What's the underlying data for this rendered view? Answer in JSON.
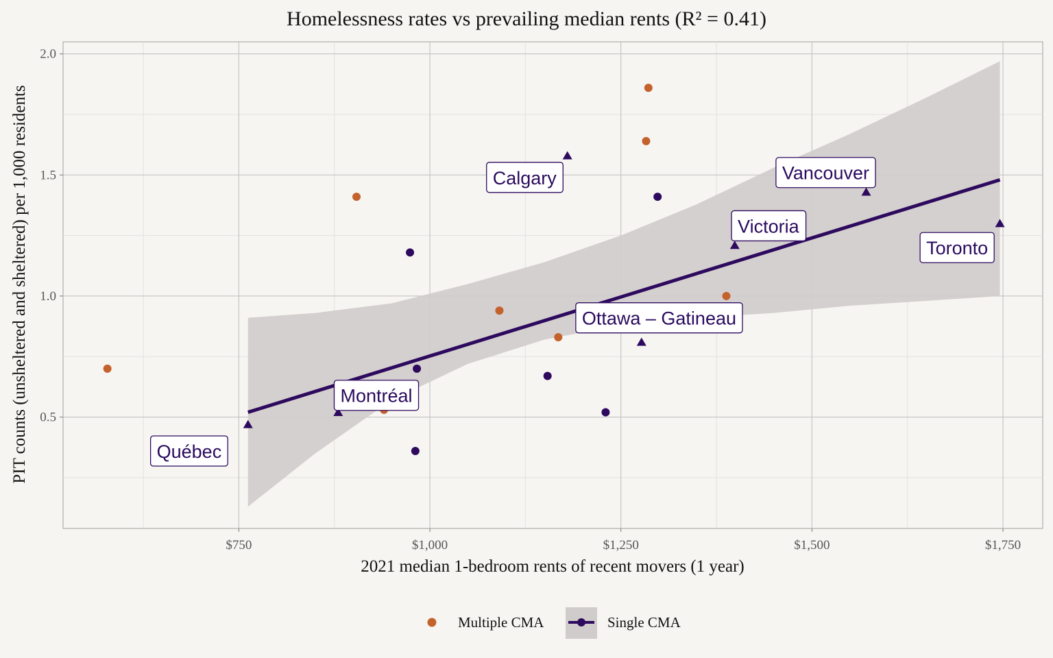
{
  "chart_data": {
    "type": "scatter",
    "title": "Homelessness rates vs prevailing median rents (R² = 0.41)",
    "xlabel": "2021 median 1-bedroom rents of recent movers (1 year)",
    "ylabel": "PIT counts (unsheltered and sheltered) per 1,000 residents",
    "xlim": [
      520,
      1802
    ],
    "ylim": [
      0.04,
      2.05
    ],
    "x_ticks": [
      750,
      1000,
      1250,
      1500,
      1750
    ],
    "x_tick_labels": [
      "$750",
      "$1,000",
      "$1,250",
      "$1,500",
      "$1,750"
    ],
    "y_ticks": [
      0.5,
      1.0,
      1.5,
      2.0
    ],
    "y_tick_labels": [
      "0.5",
      "1.0",
      "1.5",
      "2.0"
    ],
    "grid": true,
    "legend_position": "bottom",
    "colors": {
      "multiple": "#c4622d",
      "single": "#2d0a5e",
      "band": "#cfcccb",
      "background": "#f7f5f2",
      "grid_major": "#bdbdbd",
      "grid_minor": "#e4e2df",
      "label_border": "#2d0a5e"
    },
    "series": [
      {
        "name": "Multiple CMA",
        "marker": "circle",
        "points": [
          {
            "x": 578,
            "y": 0.7
          },
          {
            "x": 904,
            "y": 1.41
          },
          {
            "x": 940,
            "y": 0.53
          },
          {
            "x": 1091,
            "y": 0.94
          },
          {
            "x": 1168,
            "y": 0.83
          },
          {
            "x": 1283,
            "y": 1.64
          },
          {
            "x": 1286,
            "y": 1.86
          },
          {
            "x": 1388,
            "y": 1.0
          }
        ]
      },
      {
        "name": "Single CMA",
        "marker": "circle",
        "points": [
          {
            "x": 974,
            "y": 1.18
          },
          {
            "x": 981,
            "y": 0.36
          },
          {
            "x": 983,
            "y": 0.7
          },
          {
            "x": 1154,
            "y": 0.67
          },
          {
            "x": 1230,
            "y": 0.52
          },
          {
            "x": 1298,
            "y": 1.41
          }
        ]
      },
      {
        "name": "",
        "marker": "triangle",
        "points": [
          {
            "x": 762,
            "y": 0.47,
            "label": "Québec",
            "label_anchor": {
              "x": 685,
              "y": 0.36
            }
          },
          {
            "x": 880,
            "y": 0.52,
            "label": "Montréal",
            "label_anchor": {
              "x": 930,
              "y": 0.59
            }
          },
          {
            "x": 1180,
            "y": 1.58,
            "label": "Calgary",
            "label_anchor": {
              "x": 1124,
              "y": 1.49
            }
          },
          {
            "x": 1277,
            "y": 0.81,
            "label": "Ottawa – Gatineau",
            "label_anchor": {
              "x": 1300,
              "y": 0.91
            }
          },
          {
            "x": 1399,
            "y": 1.21,
            "label": "Victoria",
            "label_anchor": {
              "x": 1443,
              "y": 1.29
            }
          },
          {
            "x": 1571,
            "y": 1.43,
            "label": "Vancouver",
            "label_anchor": {
              "x": 1518,
              "y": 1.51
            }
          },
          {
            "x": 1746,
            "y": 1.3,
            "label": "Toronto",
            "label_anchor": {
              "x": 1690,
              "y": 1.2
            }
          }
        ]
      }
    ],
    "fit_line": {
      "x": [
        762,
        1746
      ],
      "y": [
        0.52,
        1.48
      ]
    },
    "confidence_band": {
      "x": [
        762,
        850,
        950,
        1050,
        1150,
        1250,
        1350,
        1450,
        1550,
        1650,
        1746
      ],
      "lower": [
        0.13,
        0.35,
        0.57,
        0.72,
        0.82,
        0.88,
        0.91,
        0.93,
        0.96,
        0.98,
        1.0
      ],
      "upper": [
        0.91,
        0.93,
        0.97,
        1.05,
        1.14,
        1.25,
        1.38,
        1.53,
        1.67,
        1.82,
        1.97
      ]
    },
    "legend": [
      {
        "label": "Multiple CMA",
        "color": "#c4622d",
        "style": "point"
      },
      {
        "label": "Single CMA",
        "color": "#2d0a5e",
        "style": "line-point"
      }
    ]
  }
}
